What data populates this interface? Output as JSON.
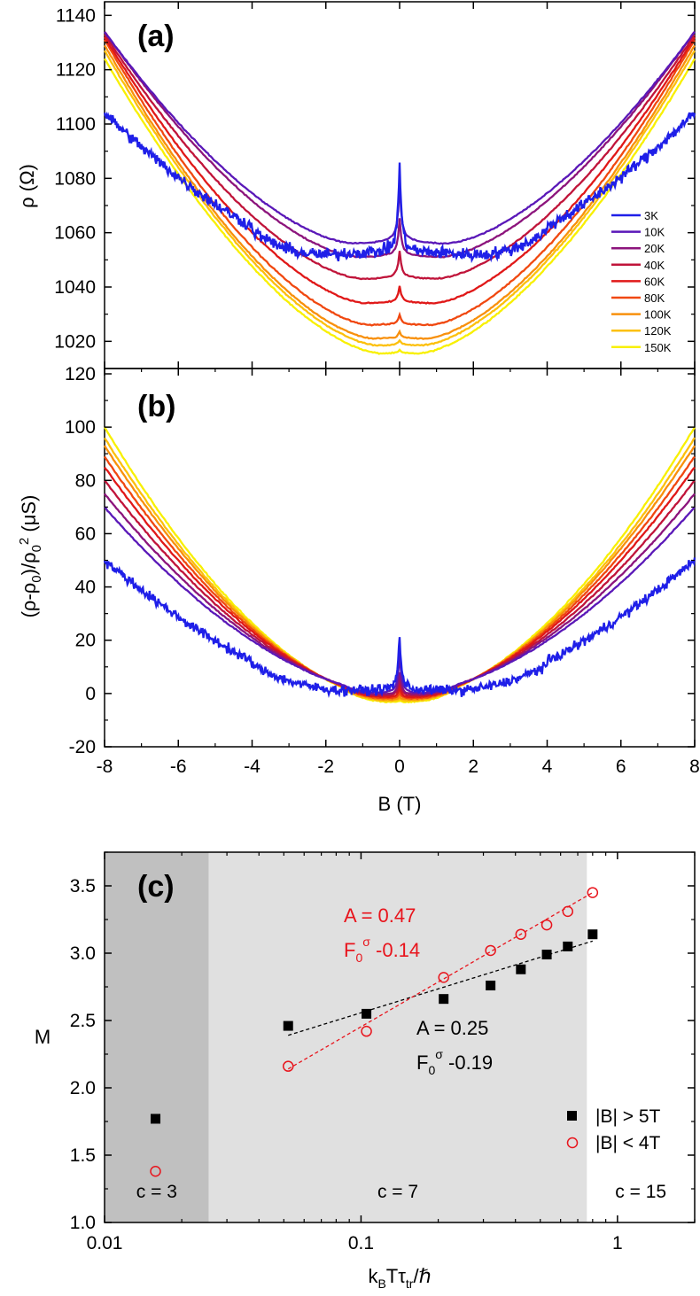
{
  "chart_data": [
    {
      "type": "line",
      "panel": "(a)",
      "xlabel": "",
      "ylabel": "ρ (Ω)",
      "xlim": [
        -8,
        8
      ],
      "ylim": [
        1010,
        1145
      ],
      "yticks": [
        1020,
        1040,
        1060,
        1080,
        1100,
        1120,
        1140
      ],
      "ytick_labels": [
        "1020",
        "1040",
        "1060",
        "1080",
        "1100",
        "1120",
        "1140"
      ],
      "legend_position": "right",
      "legend": [
        "3K",
        "10K",
        "20K",
        "40K",
        "60K",
        "80K",
        "100K",
        "120K",
        "150K"
      ],
      "series": [
        {
          "name": "3K",
          "color": "#1f1fe8",
          "rho0": 1050.5,
          "edge": 1104,
          "peak": 28,
          "flat": 1.9,
          "noise": 2.2,
          "shoulder": true
        },
        {
          "name": "10K",
          "color": "#5a18b8",
          "rho0": 1056,
          "edge": 1134,
          "peak": 17,
          "flat": 1.25,
          "noise": 0.2
        },
        {
          "name": "20K",
          "color": "#8c147c",
          "rho0": 1051,
          "edge": 1134,
          "peak": 11,
          "flat": 1.1,
          "noise": 0.2
        },
        {
          "name": "40K",
          "color": "#c0143a",
          "rho0": 1043,
          "edge": 1133,
          "peak": 8,
          "flat": 1.0,
          "noise": 0.2
        },
        {
          "name": "60K",
          "color": "#e01818",
          "rho0": 1034,
          "edge": 1132,
          "peak": 5,
          "flat": 0.9,
          "noise": 0.2
        },
        {
          "name": "80K",
          "color": "#f04810",
          "rho0": 1026,
          "edge": 1131,
          "peak": 3,
          "flat": 0.8,
          "noise": 0.2
        },
        {
          "name": "100K",
          "color": "#f8900c",
          "rho0": 1021,
          "edge": 1129,
          "peak": 2,
          "flat": 0.7,
          "noise": 0.2
        },
        {
          "name": "120K",
          "color": "#fcc00c",
          "rho0": 1018.5,
          "edge": 1127,
          "peak": 1.5,
          "flat": 0.6,
          "noise": 0.2
        },
        {
          "name": "150K",
          "color": "#f8f000",
          "rho0": 1015.5,
          "edge": 1124,
          "peak": 1,
          "flat": 0.5,
          "noise": 0.2
        }
      ]
    },
    {
      "type": "line",
      "panel": "(b)",
      "xlabel": "B (T)",
      "ylabel": "(ρ-ρ0)/ρ0² (μS)",
      "xlim": [
        -8,
        8
      ],
      "ylim": [
        -20,
        122
      ],
      "xticks": [
        -8,
        -6,
        -4,
        -2,
        0,
        2,
        4,
        6,
        8
      ],
      "xtick_labels": [
        "-8",
        "-6",
        "-4",
        "-2",
        "0",
        "2",
        "4",
        "6",
        "8"
      ],
      "yticks": [
        -20,
        0,
        20,
        40,
        60,
        80,
        100,
        120
      ],
      "ytick_labels": [
        "-20",
        "0",
        "20",
        "40",
        "60",
        "80",
        "100",
        "120"
      ],
      "series": [
        {
          "name": "3K",
          "edge": 50,
          "peak": 18,
          "noise": 1.8
        },
        {
          "name": "10K",
          "edge": 70,
          "peak": 12,
          "noise": 0.2
        },
        {
          "name": "20K",
          "edge": 75,
          "peak": 7,
          "noise": 0.2
        },
        {
          "name": "40K",
          "edge": 80,
          "peak": 5,
          "noise": 0.2
        },
        {
          "name": "60K",
          "edge": 85,
          "peak": 3,
          "noise": 0.2
        },
        {
          "name": "80K",
          "edge": 89,
          "peak": 2,
          "noise": 0.2
        },
        {
          "name": "100K",
          "edge": 93,
          "peak": 1,
          "noise": 0.2
        },
        {
          "name": "120K",
          "edge": 96,
          "peak": 0.5,
          "noise": 0.2
        },
        {
          "name": "150K",
          "edge": 100,
          "peak": 0.3,
          "noise": 0.2
        }
      ]
    },
    {
      "type": "scatter",
      "panel": "(c)",
      "xlabel": "kBTτtr/ℏ",
      "ylabel": "M",
      "xscale": "log",
      "xlim": [
        0.01,
        2
      ],
      "ylim": [
        1.0,
        3.75
      ],
      "xticks": [
        0.01,
        0.1,
        1
      ],
      "xtick_labels": [
        "0.01",
        "0.1",
        "1"
      ],
      "yticks": [
        1.0,
        1.5,
        2.0,
        2.5,
        3.0,
        3.5
      ],
      "ytick_labels": [
        "1.0",
        "1.5",
        "2.0",
        "2.5",
        "3.0",
        "3.5"
      ],
      "regions": [
        {
          "from": 0.01,
          "to": 0.0255,
          "color": "#c0c0c0",
          "label": "c = 3"
        },
        {
          "from": 0.0255,
          "to": 0.76,
          "color": "#e0e0e0",
          "label": "c = 7"
        },
        {
          "from": 0.76,
          "to": 2,
          "color": "#ffffff",
          "label": "c = 15"
        }
      ],
      "series": [
        {
          "name": "|B| > 5T",
          "marker": "square",
          "color": "#000000",
          "x": [
            0.0158,
            0.052,
            0.105,
            0.21,
            0.32,
            0.42,
            0.53,
            0.64,
            0.8
          ],
          "y": [
            1.77,
            2.46,
            2.55,
            2.66,
            2.76,
            2.88,
            2.99,
            3.05,
            3.14
          ],
          "fit": {
            "x": [
              0.052,
              0.8
            ],
            "y": [
              2.39,
              3.09
            ],
            "color": "#000000"
          }
        },
        {
          "name": "|B| < 4T",
          "marker": "open-circle",
          "color": "#e8141c",
          "x": [
            0.0158,
            0.052,
            0.105,
            0.21,
            0.32,
            0.42,
            0.53,
            0.64,
            0.8
          ],
          "y": [
            1.38,
            2.16,
            2.42,
            2.82,
            3.02,
            3.14,
            3.21,
            3.31,
            3.45
          ],
          "fit": {
            "x": [
              0.052,
              0.8
            ],
            "y": [
              2.14,
              3.45
            ],
            "color": "#e8141c"
          }
        }
      ],
      "annotations": {
        "red_A": "A = 0.47",
        "red_F_base": "F",
        "red_F_sub": "0",
        "red_F_sup": "σ",
        "red_F_value": " -0.14",
        "black_A": "A = 0.25",
        "black_F_base": "F",
        "black_F_sub": "0",
        "black_F_sup": "σ",
        "black_F_value": " -0.19"
      },
      "legend_position": "bottom-right"
    }
  ],
  "labels": {
    "panel_a": "(a)",
    "panel_b": "(b)",
    "panel_c": "(c)",
    "ylabel_a": "ρ  (Ω)",
    "ylabel_b": "(ρ-ρ0)/ρ0² (μS)",
    "xlabel_b": "B (T)",
    "ylabel_c": "M",
    "xlabel_c": "kBTτtr/ℏ"
  }
}
